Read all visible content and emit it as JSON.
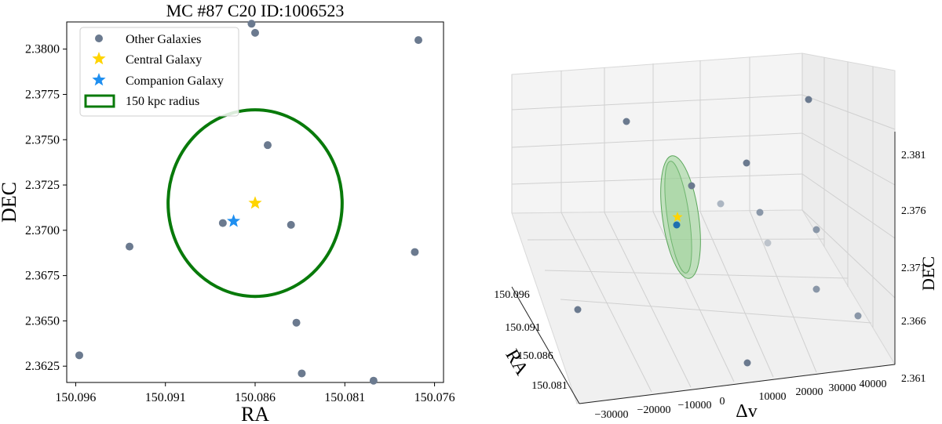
{
  "colors": {
    "other": "#6b7a8f",
    "central": "#ffd400",
    "companion": "#1f8ff0",
    "circle": "#087a0a",
    "ellipse_fill": "#9fd39a",
    "ellipse_stroke": "#5aa65a",
    "grid": "#d0d0d0",
    "pane": "#f4f4f4"
  },
  "chart_data": [
    {
      "type": "scatter",
      "title": "MC #87 C20 ID:1006523",
      "xlabel": "RA",
      "ylabel": "DEC",
      "xlim": [
        150.0965,
        150.0755
      ],
      "ylim": [
        2.3616,
        2.3815
      ],
      "x_inverted": true,
      "xticks": [
        "150.096",
        "150.091",
        "150.086",
        "150.081",
        "150.076"
      ],
      "xtick_values": [
        150.096,
        150.091,
        150.086,
        150.081,
        150.076
      ],
      "yticks": [
        "2.3625",
        "2.3650",
        "2.3675",
        "2.3700",
        "2.3725",
        "2.3750",
        "2.3775",
        "2.3800"
      ],
      "ytick_values": [
        2.3625,
        2.365,
        2.3675,
        2.37,
        2.3725,
        2.375,
        2.3775,
        2.38
      ],
      "grid": false,
      "legend_position": "top-left",
      "legend": [
        "Other Galaxies",
        "Central Galaxy",
        "Companion Galaxy",
        "150 kpc radius"
      ],
      "series": [
        {
          "name": "Other Galaxies",
          "marker": "circle",
          "points": [
            {
              "x": 150.0862,
              "y": 2.3814
            },
            {
              "x": 150.086,
              "y": 2.3809
            },
            {
              "x": 150.0769,
              "y": 2.3805
            },
            {
              "x": 150.0853,
              "y": 2.3747
            },
            {
              "x": 150.0878,
              "y": 2.3704
            },
            {
              "x": 150.084,
              "y": 2.3703
            },
            {
              "x": 150.093,
              "y": 2.3691
            },
            {
              "x": 150.0771,
              "y": 2.3688
            },
            {
              "x": 150.0837,
              "y": 2.3649
            },
            {
              "x": 150.0834,
              "y": 2.3621
            },
            {
              "x": 150.0958,
              "y": 2.3631
            },
            {
              "x": 150.0794,
              "y": 2.3617
            }
          ]
        },
        {
          "name": "Central Galaxy",
          "marker": "star",
          "points": [
            {
              "x": 150.086,
              "y": 2.3715
            }
          ]
        },
        {
          "name": "Companion Galaxy",
          "marker": "star",
          "points": [
            {
              "x": 150.0872,
              "y": 2.3705
            }
          ]
        }
      ],
      "circle": {
        "label": "150 kpc radius",
        "center_x": 150.086,
        "center_y": 2.3715,
        "radius_ra": 0.00485,
        "radius_dec": 0.00515
      }
    },
    {
      "type": "scatter",
      "projection": "3d",
      "title": "",
      "xlabel": "RA",
      "ylabel": "Δv",
      "zlabel": "DEC",
      "ra_ticks": [
        "150.096",
        "150.091",
        "150.086",
        "150.081"
      ],
      "dv_ticks": [
        "−30000",
        "−20000",
        "−10000",
        "0",
        "10000",
        "20000",
        "30000",
        "40000"
      ],
      "dec_ticks": [
        "2.361",
        "2.366",
        "2.371",
        "2.376",
        "2.381"
      ],
      "grid": true
    }
  ]
}
